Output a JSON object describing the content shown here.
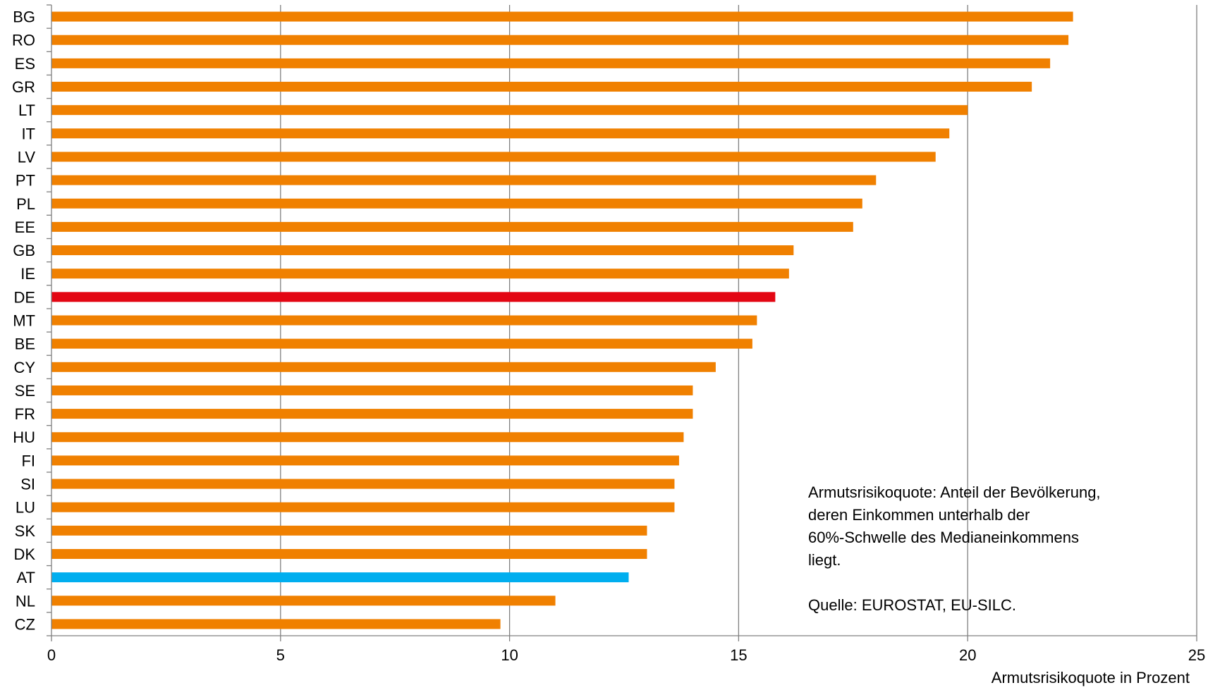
{
  "chart_data": {
    "type": "bar",
    "orientation": "horizontal",
    "categories": [
      "BG",
      "RO",
      "ES",
      "GR",
      "LT",
      "IT",
      "LV",
      "PT",
      "PL",
      "EE",
      "GB",
      "IE",
      "DE",
      "MT",
      "BE",
      "CY",
      "SE",
      "FR",
      "HU",
      "FI",
      "SI",
      "LU",
      "SK",
      "DK",
      "AT",
      "NL",
      "CZ"
    ],
    "values": [
      22.3,
      22.2,
      21.8,
      21.4,
      20.0,
      19.6,
      19.3,
      18.0,
      17.7,
      17.5,
      16.2,
      16.1,
      15.8,
      15.4,
      15.3,
      14.5,
      14.0,
      14.0,
      13.8,
      13.7,
      13.6,
      13.6,
      13.0,
      13.0,
      12.6,
      11.0,
      9.8
    ],
    "bar_colors": {
      "default": "#F08000",
      "DE": "#E30613",
      "AT": "#00AEEF"
    },
    "xlim": [
      0,
      25
    ],
    "xticks": [
      "0",
      "5",
      "10",
      "15",
      "20",
      "25"
    ],
    "xlabel": "Armutsrisikoquote in Prozent",
    "grid": "vertical",
    "gridline_color": "#808080",
    "axis_color": "#808080"
  },
  "note": {
    "lines": [
      "Armutsrisikoquote: Anteil der Bevölkerung,",
      "deren Einkommen unterhalb der",
      "60%-Schwelle des Medianeinkommens",
      "liegt."
    ],
    "source": "Quelle: EUROSTAT, EU-SILC."
  }
}
